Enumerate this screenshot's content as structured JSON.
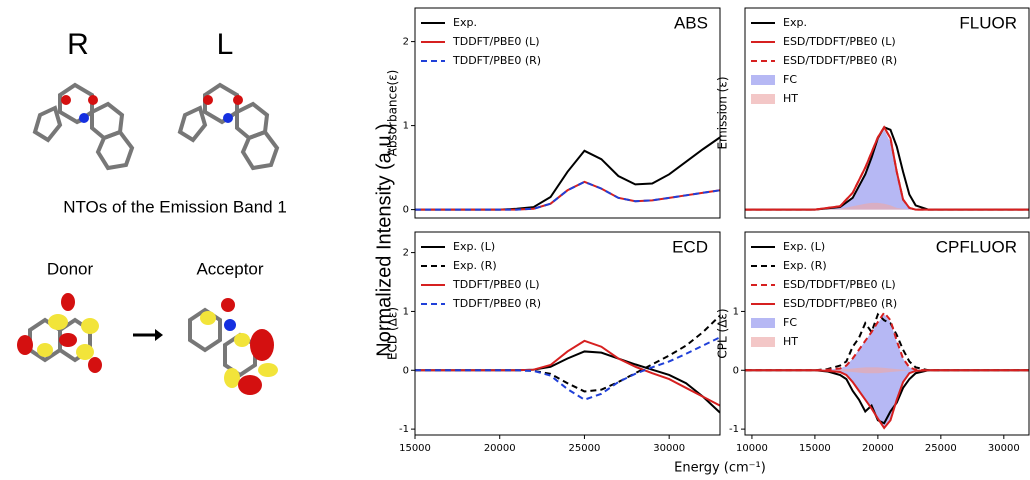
{
  "figure": {
    "molecule_left_label": "R",
    "molecule_right_label": "L",
    "nto_title": "NTOs of the Emission Band 1",
    "donor_label": "Donor",
    "acceptor_label": "Acceptor",
    "y_label": "Normalized Intensity (a.u.)",
    "x_label": "Energy (cm⁻¹)"
  },
  "chart_data": [
    {
      "type": "line",
      "title": "ABS",
      "y_label": "Absorbance(ε)",
      "legend": "upper left",
      "xlim": [
        15000,
        33000
      ],
      "ylim": [
        -0.1,
        2.4
      ],
      "yticks": [
        0,
        1,
        2
      ],
      "x": [
        15000,
        16000,
        17000,
        18000,
        19000,
        20000,
        21000,
        22000,
        23000,
        24000,
        25000,
        26000,
        27000,
        28000,
        29000,
        30000,
        31000,
        32000,
        33000
      ],
      "series": [
        {
          "name": "Exp.",
          "color": "#000000",
          "values": [
            0,
            0,
            0,
            0,
            0,
            0,
            0.01,
            0.03,
            0.15,
            0.45,
            0.7,
            0.6,
            0.4,
            0.3,
            0.31,
            0.42,
            0.57,
            0.72,
            0.86
          ]
        },
        {
          "name": "TDDFT/PBE0 (L)",
          "color": "#d62020",
          "values": [
            0,
            0,
            0,
            0,
            0,
            0,
            0,
            0.01,
            0.07,
            0.23,
            0.33,
            0.25,
            0.14,
            0.1,
            0.11,
            0.14,
            0.17,
            0.2,
            0.23
          ]
        },
        {
          "name": "TDDFT/PBE0 (R)",
          "color": "#2040d8",
          "dash": true,
          "values": [
            0,
            0,
            0,
            0,
            0,
            0,
            0,
            0.01,
            0.07,
            0.23,
            0.33,
            0.25,
            0.14,
            0.1,
            0.11,
            0.14,
            0.17,
            0.2,
            0.23
          ]
        }
      ]
    },
    {
      "type": "line",
      "title": "ECD",
      "y_label": "ECD (Δε)",
      "legend": "upper left",
      "xlim": [
        15000,
        33000
      ],
      "ylim": [
        -1.1,
        2.35
      ],
      "yticks": [
        -1,
        0,
        1,
        2
      ],
      "xticks": [
        15000,
        20000,
        25000,
        30000
      ],
      "x": [
        15000,
        16000,
        17000,
        18000,
        19000,
        20000,
        21000,
        22000,
        23000,
        24000,
        25000,
        26000,
        27000,
        28000,
        29000,
        30000,
        31000,
        32000,
        33000
      ],
      "series": [
        {
          "name": "Exp. (L)",
          "color": "#000000",
          "values": [
            0,
            0,
            0,
            0,
            0,
            0,
            0,
            0.01,
            0.06,
            0.2,
            0.32,
            0.3,
            0.2,
            0.1,
            0.01,
            -0.08,
            -0.22,
            -0.45,
            -0.72
          ]
        },
        {
          "name": "Exp. (R)",
          "color": "#000000",
          "dash": true,
          "values": [
            0,
            0,
            0,
            0,
            0,
            0,
            0,
            -0.01,
            -0.06,
            -0.22,
            -0.36,
            -0.33,
            -0.2,
            -0.05,
            0.1,
            0.25,
            0.42,
            0.65,
            0.93
          ]
        },
        {
          "name": "TDDFT/PBE0 (L)",
          "color": "#d62020",
          "values": [
            0,
            0,
            0,
            0,
            0,
            0,
            0,
            0.01,
            0.09,
            0.32,
            0.5,
            0.4,
            0.2,
            0.06,
            -0.05,
            -0.15,
            -0.3,
            -0.45,
            -0.6
          ]
        },
        {
          "name": "TDDFT/PBE0 (R)",
          "color": "#2040d8",
          "dash": true,
          "values": [
            0,
            0,
            0,
            0,
            0,
            0,
            0,
            -0.01,
            -0.09,
            -0.32,
            -0.5,
            -0.4,
            -0.2,
            -0.06,
            0.05,
            0.15,
            0.28,
            0.42,
            0.56
          ]
        }
      ]
    },
    {
      "type": "line",
      "title": "FLUOR",
      "y_label": "Emission (ε)",
      "legend": "upper left",
      "xlim": [
        9450,
        32000
      ],
      "ylim": [
        -0.1,
        2.4
      ],
      "x": [
        9500,
        15000,
        17000,
        18000,
        19000,
        19500,
        20000,
        20500,
        21000,
        21500,
        22000,
        22500,
        23000,
        24000,
        32000
      ],
      "series": [
        {
          "name": "Exp.",
          "color": "#000000",
          "values": [
            0,
            0,
            0.03,
            0.14,
            0.42,
            0.62,
            0.85,
            0.98,
            0.95,
            0.75,
            0.45,
            0.18,
            0.05,
            0,
            0
          ]
        },
        {
          "name": "ESD/TDDFT/PBE0 (L)",
          "color": "#d62020",
          "values": [
            0,
            0,
            0.04,
            0.2,
            0.5,
            0.68,
            0.86,
            0.98,
            0.85,
            0.45,
            0.12,
            0.02,
            0,
            0,
            0
          ]
        },
        {
          "name": "ESD/TDDFT/PBE0 (R)",
          "color": "#d62020",
          "dash": true,
          "values": [
            0,
            0,
            0.04,
            0.2,
            0.5,
            0.68,
            0.86,
            0.98,
            0.85,
            0.45,
            0.12,
            0.02,
            0,
            0,
            0
          ]
        },
        {
          "name": "FC",
          "color": "#8f92ee",
          "fill": true,
          "values": [
            0,
            0,
            0.02,
            0.15,
            0.45,
            0.63,
            0.82,
            0.95,
            0.8,
            0.4,
            0.1,
            0.01,
            0,
            0,
            0
          ]
        },
        {
          "name": "HT",
          "color": "#eda9a9",
          "fill": true,
          "values": [
            0,
            0,
            0.01,
            0.04,
            0.07,
            0.08,
            0.08,
            0.07,
            0.05,
            0.02,
            0.01,
            0,
            0,
            0,
            0
          ]
        }
      ]
    },
    {
      "type": "line",
      "title": "CPFLUOR",
      "y_label": "CPL (Δε)",
      "legend": "upper left",
      "xlim": [
        9450,
        32000
      ],
      "ylim": [
        -1.1,
        2.35
      ],
      "yticks": [
        -1,
        0,
        1
      ],
      "xticks": [
        10000,
        15000,
        20000,
        25000,
        30000
      ],
      "x": [
        9500,
        15000,
        16000,
        17000,
        17500,
        18000,
        18500,
        19000,
        19500,
        20000,
        20500,
        21000,
        21500,
        22000,
        22500,
        23000,
        24000,
        32000
      ],
      "series": [
        {
          "name": "Exp. (L)",
          "color": "#000000",
          "values": [
            0,
            0,
            -0.02,
            -0.08,
            -0.15,
            -0.35,
            -0.5,
            -0.7,
            -0.6,
            -0.85,
            -0.9,
            -0.7,
            -0.55,
            -0.3,
            -0.15,
            -0.05,
            0,
            0
          ]
        },
        {
          "name": "Exp. (R)",
          "color": "#000000",
          "dash": true,
          "values": [
            0,
            0,
            0.02,
            0.08,
            0.15,
            0.4,
            0.55,
            0.8,
            0.65,
            0.95,
            0.85,
            0.8,
            0.6,
            0.35,
            0.15,
            0.05,
            0,
            0
          ]
        },
        {
          "name": "ESD/TDDFT/PBE0 (L)",
          "color": "#d62020",
          "dash": true,
          "values": [
            0,
            0,
            0.01,
            0.03,
            0.08,
            0.2,
            0.35,
            0.5,
            0.65,
            0.82,
            0.98,
            0.85,
            0.5,
            0.2,
            0.05,
            0.01,
            0,
            0
          ]
        },
        {
          "name": "ESD/TDDFT/PBE0 (R)",
          "color": "#d62020",
          "values": [
            0,
            0,
            -0.01,
            -0.03,
            -0.08,
            -0.2,
            -0.35,
            -0.5,
            -0.65,
            -0.82,
            -0.98,
            -0.85,
            -0.5,
            -0.2,
            -0.05,
            -0.01,
            0,
            0
          ]
        },
        {
          "name": "FC",
          "color": "#8f92ee",
          "fill": true,
          "values": [
            0,
            0,
            0.01,
            0.03,
            0.08,
            0.2,
            0.35,
            0.5,
            0.65,
            0.8,
            0.95,
            0.82,
            0.48,
            0.2,
            0.05,
            0.01,
            0,
            0
          ],
          "lower": [
            0,
            0,
            -0.01,
            -0.03,
            -0.08,
            -0.2,
            -0.35,
            -0.5,
            -0.65,
            -0.8,
            -0.95,
            -0.82,
            -0.48,
            -0.2,
            -0.05,
            -0.01,
            0,
            0
          ]
        },
        {
          "name": "HT",
          "color": "#eda9a9",
          "fill": true,
          "values": [
            0,
            0,
            0,
            0.01,
            0.02,
            0.03,
            0.04,
            0.05,
            0.05,
            0.05,
            0.04,
            0.03,
            0.02,
            0.01,
            0,
            0,
            0,
            0
          ],
          "lower": [
            0,
            0,
            0,
            -0.01,
            -0.02,
            -0.03,
            -0.04,
            -0.05,
            -0.05,
            -0.05,
            -0.04,
            -0.03,
            -0.02,
            -0.01,
            0,
            0,
            0,
            0
          ]
        }
      ]
    }
  ]
}
